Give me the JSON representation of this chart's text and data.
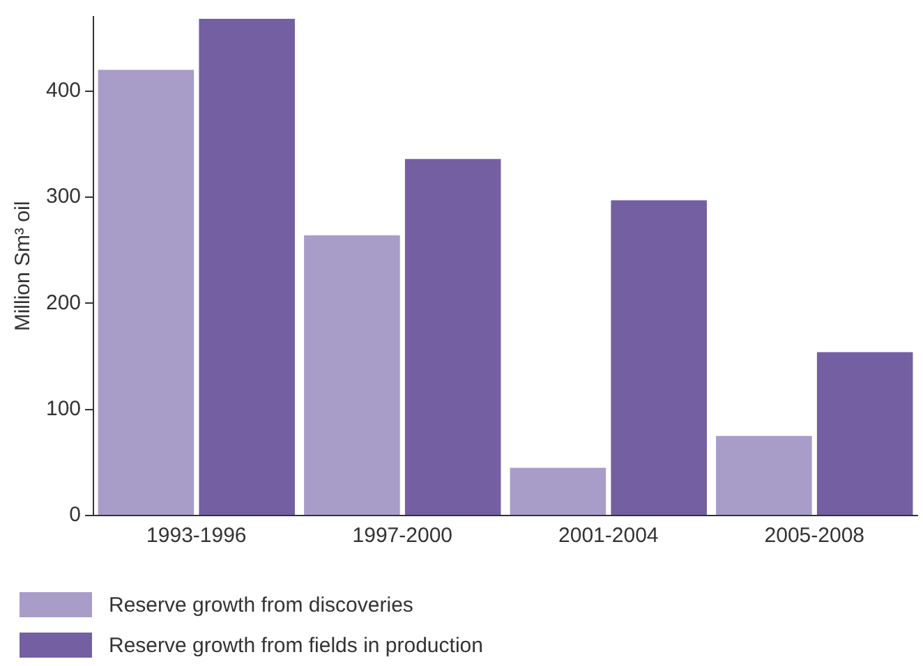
{
  "chart_data": {
    "type": "bar",
    "ylabel": "Million Sm³ oil",
    "categories": [
      "1993-1996",
      "1997-2000",
      "2001-2004",
      "2005-2008"
    ],
    "series": [
      {
        "name": "Reserve growth from discoveries",
        "color": "#a89cc8",
        "values": [
          420,
          264,
          45,
          75
        ]
      },
      {
        "name": "Reserve growth from fields in production",
        "color": "#735fa2",
        "values": [
          468,
          336,
          297,
          154
        ]
      }
    ],
    "ylim": [
      0,
      470
    ],
    "yticks": [
      0,
      100,
      200,
      300,
      400
    ],
    "grid": false,
    "legend": "bottom"
  }
}
